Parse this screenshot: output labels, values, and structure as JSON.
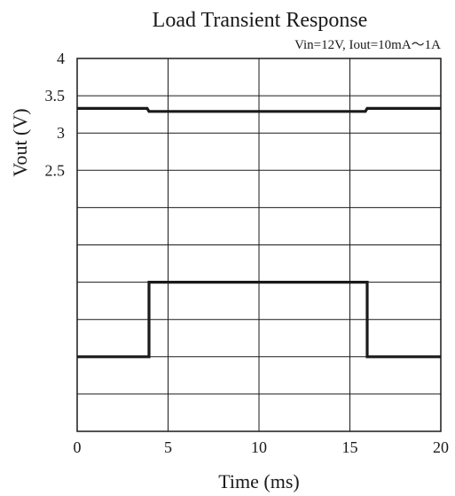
{
  "chart_data": {
    "type": "line",
    "title": "Load Transient Response",
    "subtitle": "Vin=12V, Iout=10mA～1A",
    "xlabel": "Time (ms)",
    "ylabel": "Vout (V)",
    "xlim": [
      0,
      20
    ],
    "ylim": [
      -1,
      4
    ],
    "x_ticks": [
      0,
      5,
      10,
      15,
      20
    ],
    "x_tick_labels": [
      "0",
      "5",
      "10",
      "15",
      "20"
    ],
    "y_ticks": [
      4,
      3.5,
      3,
      2.5
    ],
    "y_tick_labels": [
      "4",
      "3.5",
      "3",
      "2.5"
    ],
    "grid": true,
    "series": [
      {
        "x": [
          0,
          3.85,
          3.95,
          15.85,
          15.95,
          20
        ],
        "y": [
          3.33,
          3.33,
          3.29,
          3.29,
          3.33,
          3.33
        ],
        "color": "#1a1a1a"
      },
      {
        "x": [
          0,
          3.95,
          3.95,
          15.95,
          15.95,
          20
        ],
        "y": [
          0,
          0,
          1,
          1,
          0,
          0
        ],
        "color": "#1a1a1a"
      }
    ]
  }
}
